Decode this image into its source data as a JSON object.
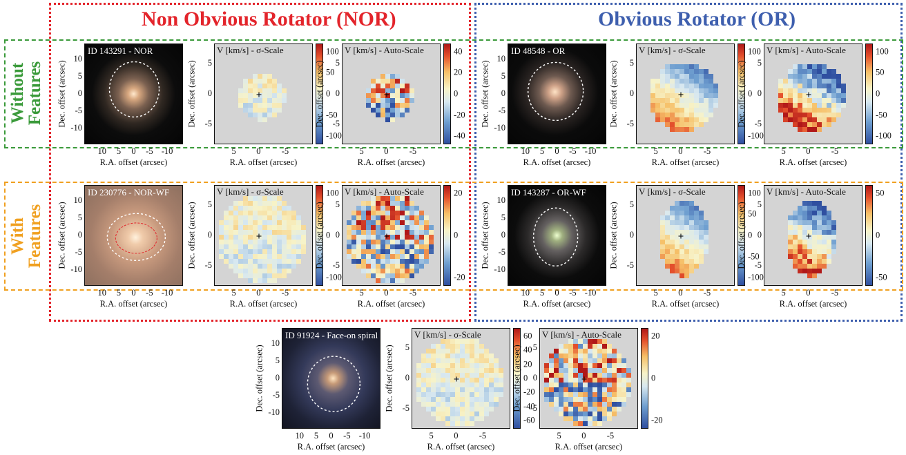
{
  "headers": {
    "nor": "Non Obvious Rotator (NOR)",
    "or": "Obvious Rotator (OR)"
  },
  "row_labels": {
    "without": [
      "Without",
      "Features"
    ],
    "with": [
      "With",
      "Features"
    ]
  },
  "axis": {
    "x": "R.A. offset (arcsec)",
    "y": "Dec. offset (arcsec)"
  },
  "map_titles": {
    "sigma": "V [km/s] - σ-Scale",
    "auto": "V [km/s] - Auto-Scale"
  },
  "colors": {
    "nor": "#e3242b",
    "or": "#3e5fae",
    "without": "#3a9a3a",
    "with": "#f0a020"
  },
  "groups": [
    {
      "id_label": "ID 143291 - NOR",
      "image_xticks": [
        "10",
        "5",
        "0",
        "-5",
        "-10"
      ],
      "image_yticks": [
        "10",
        "5",
        "0",
        "-5",
        "-10"
      ],
      "sigma_cbar": [
        "100",
        "50",
        "0",
        "-50",
        "-100"
      ],
      "auto_cbar": [
        "40",
        "20",
        "0",
        "-20",
        "-40"
      ]
    },
    {
      "id_label": "ID 48548 - OR",
      "image_xticks": [
        "10",
        "5",
        "0",
        "-5",
        "-10"
      ],
      "image_yticks": [
        "10",
        "5",
        "0",
        "-5",
        "-10"
      ],
      "sigma_cbar": [
        "100",
        "0",
        "-100"
      ],
      "auto_cbar": [
        "100",
        "50",
        "0",
        "-50",
        "-100"
      ]
    },
    {
      "id_label": "ID 230776 - NOR-WF",
      "image_xticks": [
        "10",
        "5",
        "0",
        "-5",
        "-10"
      ],
      "image_yticks": [
        "10",
        "5",
        "0",
        "-5",
        "-10"
      ],
      "sigma_cbar": [
        "100",
        "0",
        "-100"
      ],
      "auto_cbar": [
        "20",
        "0",
        "-20"
      ]
    },
    {
      "id_label": "ID 143287 - OR-WF",
      "image_xticks": [
        "10",
        "5",
        "0",
        "-5",
        "-10"
      ],
      "image_yticks": [
        "10",
        "5",
        "0",
        "-5",
        "-10"
      ],
      "sigma_cbar": [
        "100",
        "50",
        "0",
        "-50",
        "-100"
      ],
      "auto_cbar": [
        "50",
        "0",
        "-50"
      ]
    },
    {
      "id_label": "ID 91924 - Face-on spiral",
      "image_xticks": [
        "10",
        "5",
        "0",
        "-5",
        "-10"
      ],
      "image_yticks": [
        "10",
        "5",
        "0",
        "-5",
        "-10"
      ],
      "sigma_cbar": [
        "60",
        "40",
        "20",
        "0",
        "-20",
        "-40",
        "-60"
      ],
      "auto_cbar": [
        "20",
        "0",
        "-20"
      ]
    }
  ],
  "map_xticks": [
    "5",
    "0",
    "-5"
  ],
  "map_yticks": [
    "5",
    "0",
    "-5"
  ]
}
